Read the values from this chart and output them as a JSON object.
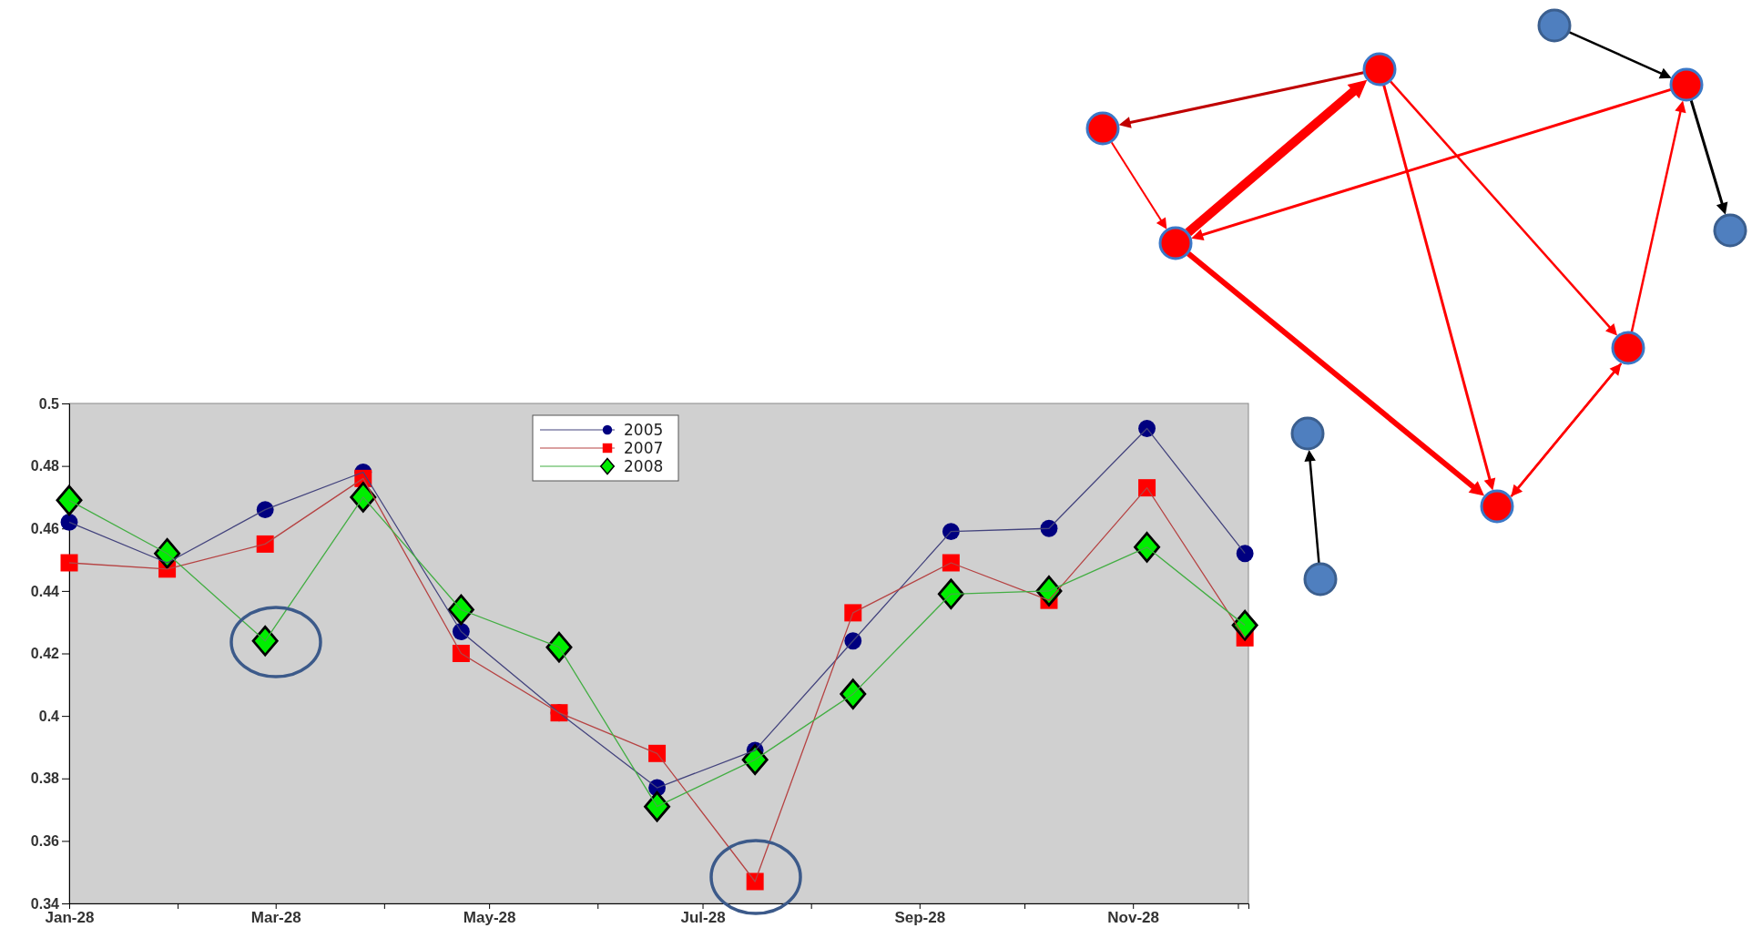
{
  "chart_data": {
    "type": "line",
    "x": [
      "--01-28",
      "--02-25",
      "--03-25",
      "--04-22",
      "--05-20",
      "--06-17",
      "--07-15",
      "--08-12",
      "--09-09",
      "--10-07",
      "--11-04",
      "--12-02",
      "--12-30"
    ],
    "series": [
      {
        "name": "2005",
        "color": "#000080",
        "marker": "circle",
        "values": [
          0.462,
          0.449,
          0.466,
          0.478,
          0.427,
          0.401,
          0.377,
          0.389,
          0.424,
          0.459,
          0.46,
          0.492,
          0.452
        ]
      },
      {
        "name": "2007",
        "color": "#ff0000",
        "marker": "square",
        "values": [
          0.449,
          0.447,
          0.455,
          0.476,
          0.42,
          0.401,
          0.388,
          0.347,
          0.433,
          0.449,
          0.437,
          0.473,
          0.425
        ]
      },
      {
        "name": "2008",
        "color": "#00ee00",
        "marker": "diamond",
        "values": [
          0.469,
          0.452,
          0.424,
          0.47,
          0.434,
          0.422,
          0.371,
          0.386,
          0.407,
          0.439,
          0.44,
          0.454,
          0.429
        ]
      }
    ],
    "xlim": [
      "--01-28",
      "--12-31"
    ],
    "xticks": [
      {
        "value": "--01-28",
        "label": "Jan-28"
      },
      {
        "value": "--02-28",
        "label": null
      },
      {
        "value": "--03-28",
        "label": "Mar-28"
      },
      {
        "value": "--04-28",
        "label": null
      },
      {
        "value": "--05-28",
        "label": "May-28"
      },
      {
        "value": "--06-28",
        "label": null
      },
      {
        "value": "--07-28",
        "label": "Jul-28"
      },
      {
        "value": "--08-28",
        "label": null
      },
      {
        "value": "--09-28",
        "label": "Sep-28"
      },
      {
        "value": "--10-28",
        "label": null
      },
      {
        "value": "--11-28",
        "label": "Nov-28"
      },
      {
        "value": "--12-28",
        "label": null
      }
    ],
    "ylim": [
      0.34,
      0.5
    ],
    "yticks": [
      {
        "value": 0.34,
        "label": "0.34"
      },
      {
        "value": 0.36,
        "label": "0.36"
      },
      {
        "value": 0.38,
        "label": "0.38"
      },
      {
        "value": 0.4,
        "label": "0.4"
      },
      {
        "value": 0.42,
        "label": "0.42"
      },
      {
        "value": 0.44,
        "label": "0.44"
      },
      {
        "value": 0.46,
        "label": "0.46"
      },
      {
        "value": 0.48,
        "label": "0.48"
      },
      {
        "value": 0.5,
        "label": "0.5"
      }
    ],
    "grid": false,
    "legend": "top",
    "line_style": "solid"
  }
}
